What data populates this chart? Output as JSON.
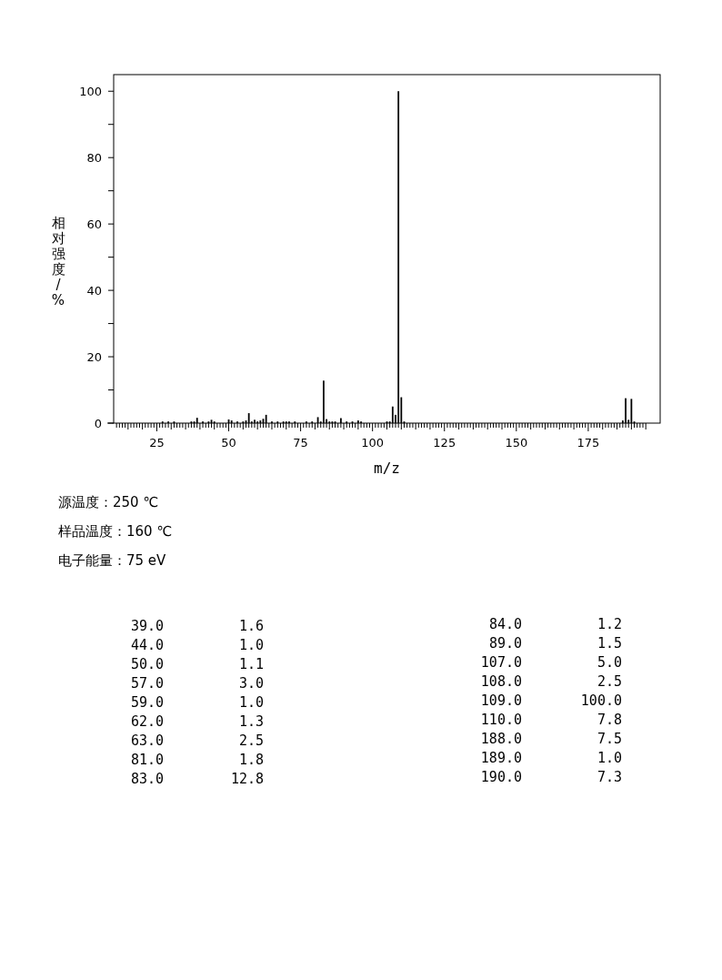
{
  "chart_data": {
    "type": "bar",
    "xlabel": "m/z",
    "ylabel": "相对强度/%",
    "annotations": [
      "源温度：250 ℃",
      "样品温度：160 ℃",
      "电子能量：75 eV",
      "39.0",
      "1.6",
      "44.0",
      "1.0",
      "50.0",
      "1.1",
      "57.0",
      "3.0",
      "59.0",
      "1.0",
      "62.0",
      "1.3",
      "63.0",
      "2.5",
      "81.0",
      "1.8",
      "83.0",
      "12.8",
      "84.0",
      "1.2",
      "89.0",
      "1.5",
      "107.0",
      "5.0",
      "108.0",
      "2.5",
      "109.0",
      "100.0",
      "110.0",
      "7.8",
      "188.0",
      "7.5",
      "189.0",
      "1.0",
      "190.0",
      "7.3"
    ],
    "xlim": [
      10,
      200
    ],
    "ylim": [
      0,
      105
    ],
    "yticks": [
      0,
      {
        "value": 10,
        "label": null
      },
      20,
      {
        "value": 30,
        "label": null
      },
      40,
      {
        "value": 50,
        "label": null
      },
      60,
      {
        "value": 70,
        "label": null
      },
      80,
      {
        "value": 90,
        "label": null
      },
      100
    ],
    "xticks": [
      25,
      50,
      75,
      100,
      125,
      150,
      175
    ],
    "series": [
      {
        "color": "#000000",
        "x": [
          27,
          29,
          31,
          37,
          38,
          39,
          41,
          43,
          44,
          45,
          50,
          51,
          53,
          55,
          56,
          57,
          58,
          59,
          60,
          61,
          62,
          63,
          65,
          67,
          69,
          70,
          71,
          73,
          77,
          79,
          81,
          82,
          83,
          84,
          85,
          86,
          87,
          89,
          91,
          93,
          95,
          96,
          105,
          106,
          107,
          108,
          109,
          110,
          111,
          187,
          188,
          189,
          190,
          191
        ],
        "values": [
          0.5,
          0.5,
          0.5,
          0.5,
          0.5,
          1.6,
          0.5,
          0.5,
          1.0,
          0.5,
          1.1,
          0.8,
          0.5,
          0.5,
          0.8,
          3.0,
          0.5,
          1.0,
          0.5,
          0.8,
          1.3,
          2.5,
          0.5,
          0.5,
          0.5,
          0.5,
          0.5,
          0.5,
          0.5,
          0.5,
          1.8,
          0.5,
          12.8,
          1.2,
          0.5,
          0.5,
          0.5,
          1.5,
          0.5,
          0.5,
          0.8,
          0.5,
          0.5,
          0.5,
          5.0,
          2.5,
          100.0,
          7.8,
          0.5,
          0.8,
          7.5,
          1.0,
          7.3,
          0.5
        ]
      }
    ]
  }
}
